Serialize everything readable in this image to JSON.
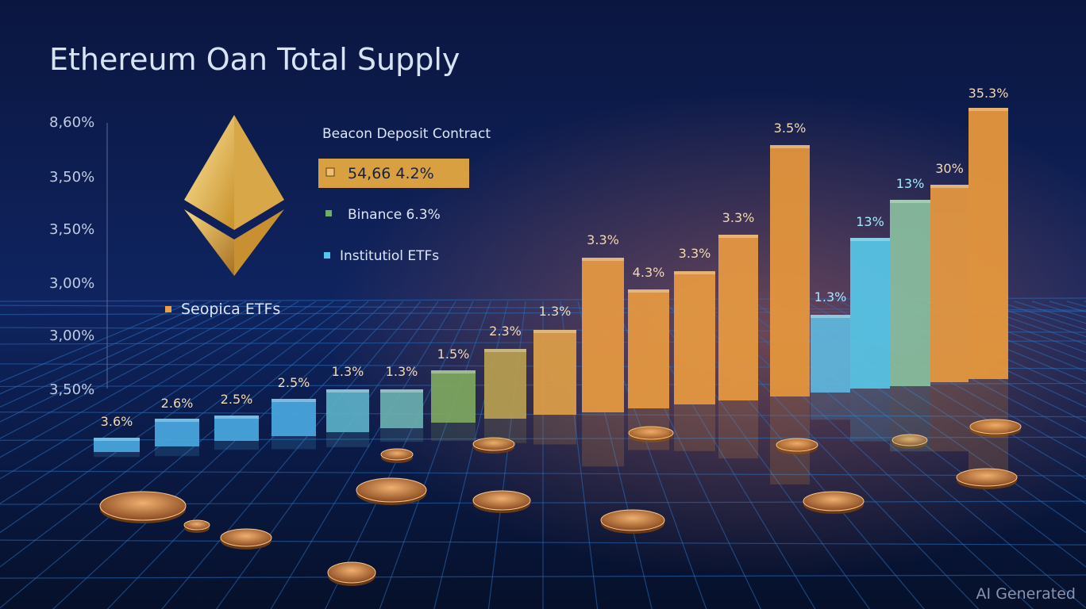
{
  "title": "Ethereum Oan Total Supply",
  "axis_labels": [
    "8,60%",
    "3,50%",
    "3,50%",
    "3,00%",
    "3,00%",
    "3,50%"
  ],
  "legend": {
    "heading": "Beacon Deposit Contract",
    "highlight": "54,66 4.2%",
    "items": [
      "Binance 6.3%",
      "Institutiol ETFs",
      "Seopica ETFs"
    ]
  },
  "bar_labels": [
    "3.6%",
    "2.6%",
    "2.5%",
    "2.5%",
    "1.3%",
    "1.3%",
    "1.5%",
    "2.3%",
    "1.3%",
    "3.3%",
    "4.3%",
    "3.3%",
    "3.3%",
    "3.5%",
    "1.3%",
    "13%",
    "13%",
    "30%",
    "35.3%"
  ],
  "bar_colors": [
    "#4aa8e0",
    "#4aa8e0",
    "#4aa8e0",
    "#4aa8e0",
    "#5cb0c8",
    "#6ab0b0",
    "#7fa860",
    "#b8a050",
    "#e0a048",
    "#e89a40",
    "#e89a40",
    "#e89a40",
    "#e89a40",
    "#e8983c",
    "#60b8e0",
    "#58c8e8",
    "#8ac0a0",
    "#e89a40",
    "#ec9a3c"
  ],
  "watermark": "AI Generated"
}
